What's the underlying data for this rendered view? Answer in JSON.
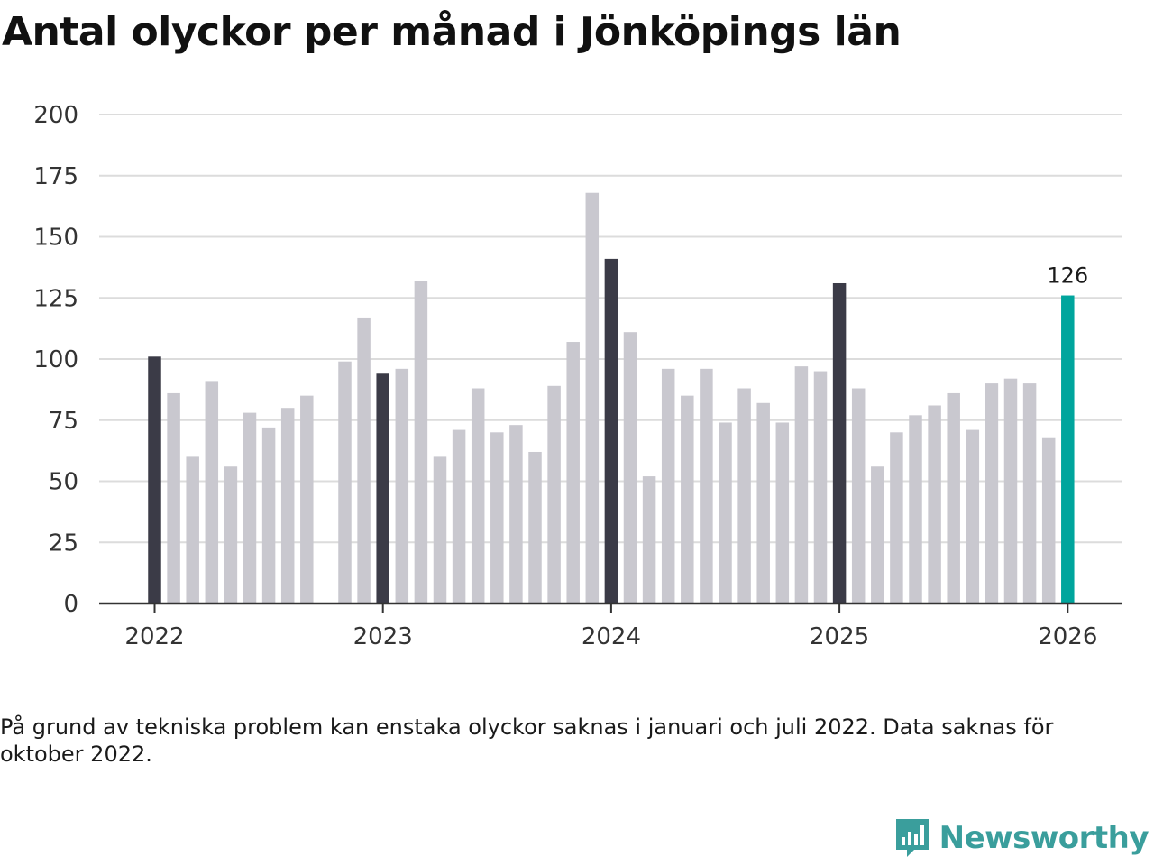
{
  "title": "Antal olyckor per månad i Jönköpings län",
  "note": "På grund av tekniska problem kan enstaka olyckor saknas i januari och juli 2022. Data saknas för oktober 2022.",
  "logo": {
    "text": "Newsworthy"
  },
  "colors": {
    "highlight": "#3b3b47",
    "normal": "#c9c8cf",
    "latest": "#00a59d",
    "grid": "#dcdcdc",
    "axis": "#333333"
  },
  "chart_data": {
    "type": "bar",
    "title": "Antal olyckor per månad i Jönköpings län",
    "xlabel": "",
    "ylabel": "",
    "ylim": [
      0,
      200
    ],
    "yticks": [
      0,
      25,
      50,
      75,
      100,
      125,
      150,
      175,
      200
    ],
    "xticks": [
      {
        "label": "2022",
        "index": 0
      },
      {
        "label": "2023",
        "index": 12
      },
      {
        "label": "2024",
        "index": 24
      },
      {
        "label": "2025",
        "index": 36
      },
      {
        "label": "2026",
        "index": 48
      }
    ],
    "categories": [
      "2022-01",
      "2022-02",
      "2022-03",
      "2022-04",
      "2022-05",
      "2022-06",
      "2022-07",
      "2022-08",
      "2022-09",
      "2022-10",
      "2022-11",
      "2022-12",
      "2023-01",
      "2023-02",
      "2023-03",
      "2023-04",
      "2023-05",
      "2023-06",
      "2023-07",
      "2023-08",
      "2023-09",
      "2023-10",
      "2023-11",
      "2023-12",
      "2024-01",
      "2024-02",
      "2024-03",
      "2024-04",
      "2024-05",
      "2024-06",
      "2024-07",
      "2024-08",
      "2024-09",
      "2024-10",
      "2024-11",
      "2024-12",
      "2025-01",
      "2025-02",
      "2025-03",
      "2025-04",
      "2025-05",
      "2025-06",
      "2025-07",
      "2025-08",
      "2025-09",
      "2025-10",
      "2025-11",
      "2025-12",
      "2026-01"
    ],
    "values": [
      101,
      86,
      60,
      91,
      56,
      78,
      72,
      80,
      85,
      null,
      99,
      117,
      94,
      96,
      132,
      60,
      71,
      88,
      70,
      73,
      62,
      89,
      107,
      168,
      141,
      111,
      52,
      96,
      85,
      96,
      74,
      88,
      82,
      74,
      97,
      95,
      131,
      88,
      56,
      70,
      77,
      81,
      86,
      71,
      90,
      92,
      90,
      68,
      126
    ],
    "highlight_indices": [
      0,
      12,
      24,
      36
    ],
    "latest_label": "126"
  }
}
